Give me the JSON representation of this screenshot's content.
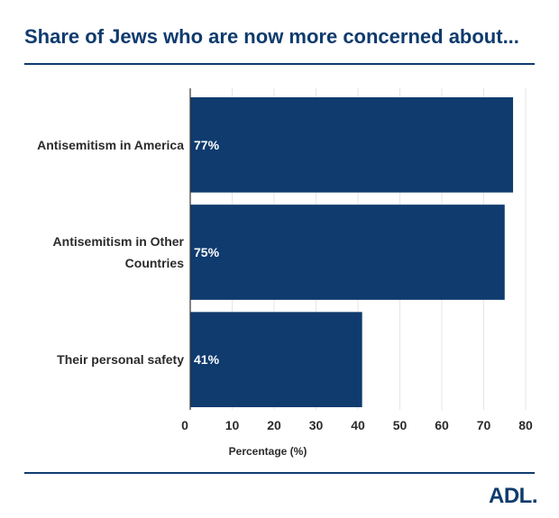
{
  "chart_data": {
    "type": "bar",
    "orientation": "horizontal",
    "title": "Share of Jews who are now more concerned about...",
    "categories": [
      "Antisemitism in America",
      "Antisemitism in Other Countries",
      "Their personal safety"
    ],
    "category_lines": [
      [
        "Antisemitism in America"
      ],
      [
        "Antisemitism in Other",
        "Countries"
      ],
      [
        "Their personal safety"
      ]
    ],
    "values": [
      77,
      75,
      41
    ],
    "data_labels": [
      "77%",
      "75%",
      "41%"
    ],
    "xlabel": "Percentage (%)",
    "ylabel": "",
    "xlim": [
      0,
      80
    ],
    "xticks": [
      0,
      10,
      20,
      30,
      40,
      50,
      60,
      70,
      80
    ],
    "grid": true,
    "legend": "none",
    "bar_color": "#0f3b6e"
  },
  "brand": {
    "logo_text": "ADL",
    "logo_dot": "."
  }
}
